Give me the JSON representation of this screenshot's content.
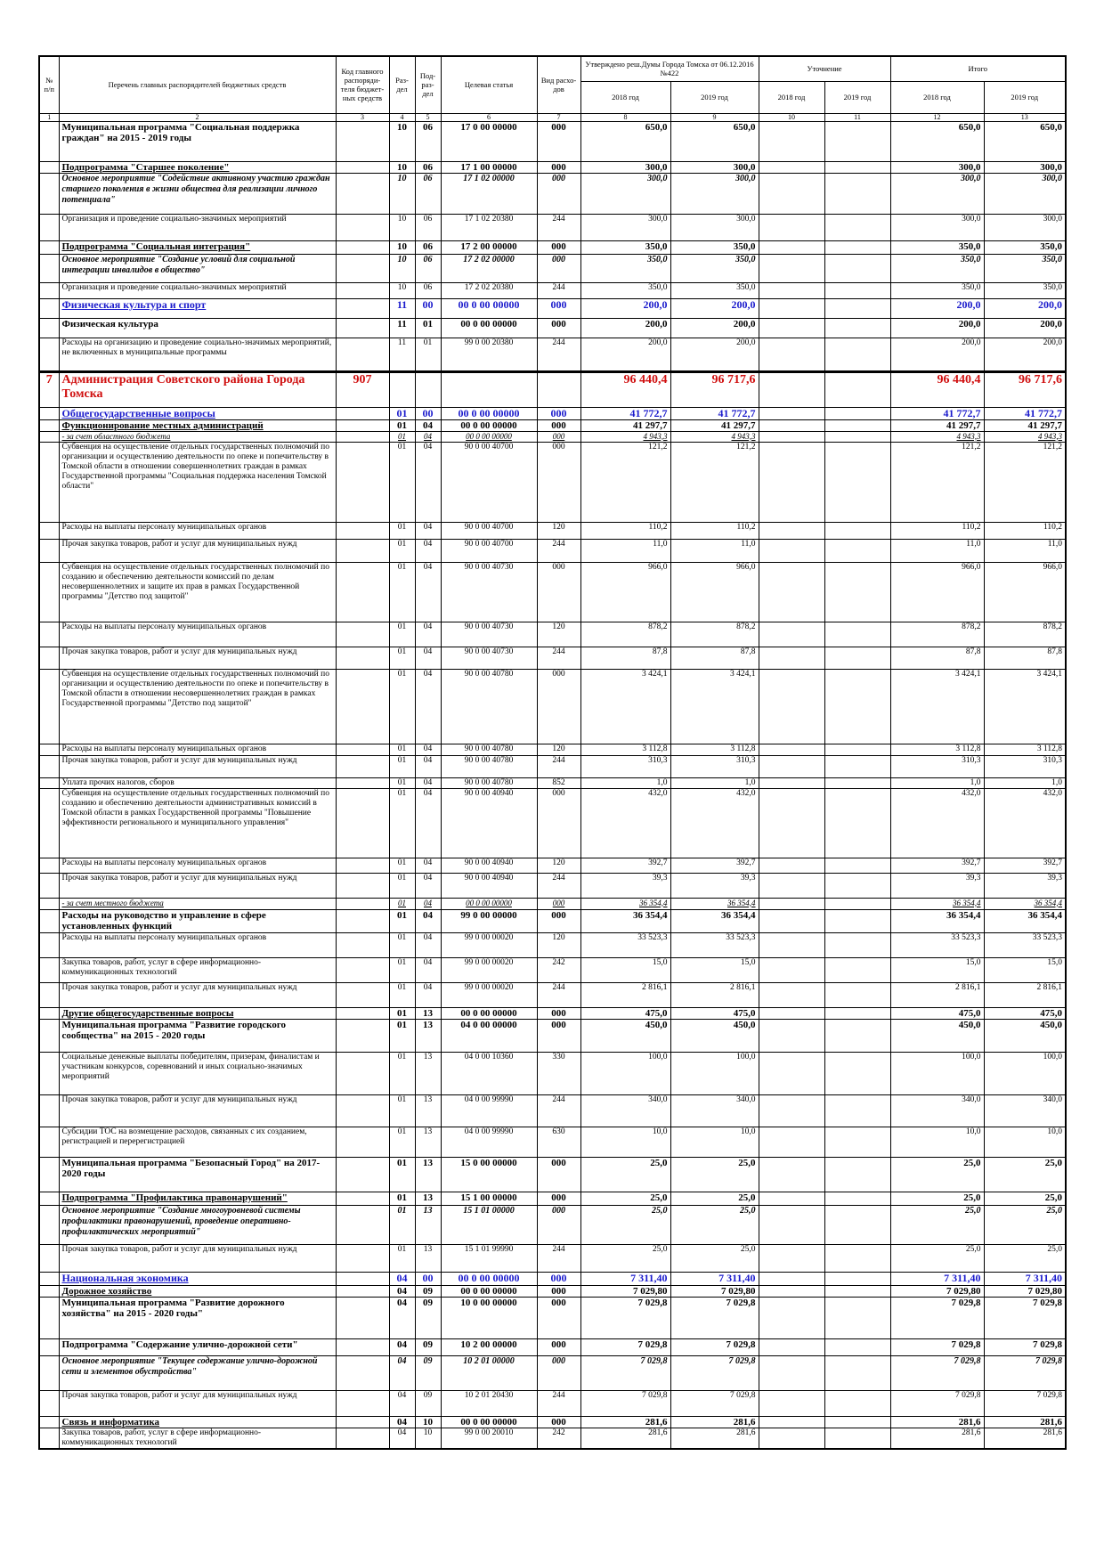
{
  "header": {
    "num": "№ п/п",
    "name": "Перечень главных распорядителей бюджетных средств",
    "code": "Код главного распоряди-теля бюджет-ных средств",
    "sec": "Раз-дел",
    "sub": "Под-раз-дел",
    "target": "Целевая статья",
    "kind": "Вид расхо-дов",
    "approved": "Утверждено реш.Думы Города Томска от 06.12.2016 №422",
    "clarified": "Уточнение",
    "total": "Итого",
    "years": [
      "2018 год",
      "2019 год",
      "2018 год",
      "2019 год",
      "2018 год",
      "2019 год"
    ],
    "colnums": [
      "1",
      "2",
      "3",
      "4",
      "5",
      "6",
      "7",
      "8",
      "9",
      "10",
      "11",
      "12",
      "13"
    ]
  },
  "table": {
    "rows": [
      {
        "name": "Муниципальная программа \"Социальная поддержка граждан\" на 2015 - 2019 годы",
        "sec": "10",
        "sub": "06",
        "target": "17 0 00 00000",
        "kind": "000",
        "a18": "650,0",
        "a19": "650,0",
        "t18": "650,0",
        "t19": "650,0"
      },
      {
        "name": "Подпрограмма \"Старшее поколение\"",
        "sec": "10",
        "sub": "06",
        "target": "17 1 00 00000",
        "kind": "000",
        "a18": "300,0",
        "a19": "300,0",
        "t18": "300,0",
        "t19": "300,0"
      },
      {
        "name": "Основное мероприятие \"Содействие активному участию граждан старшего поколения в жизни общества для реализации личного потенциала\"",
        "sec": "10",
        "sub": "06",
        "target": "17 1 02 00000",
        "kind": "000",
        "a18": "300,0",
        "a19": "300,0",
        "t18": "300,0",
        "t19": "300,0"
      },
      {
        "name": "Организация и проведение социально-значимых мероприятий",
        "sec": "10",
        "sub": "06",
        "target": "17 1 02 20380",
        "kind": "244",
        "a18": "300,0",
        "a19": "300,0",
        "t18": "300,0",
        "t19": "300,0"
      },
      {
        "name": "Подпрограмма \"Социальная интеграция\"",
        "sec": "10",
        "sub": "06",
        "target": "17 2 00 00000",
        "kind": "000",
        "a18": "350,0",
        "a19": "350,0",
        "t18": "350,0",
        "t19": "350,0"
      },
      {
        "name": "Основное мероприятие \"Создание условий для социальной интеграции инвалидов в общество\"",
        "sec": "10",
        "sub": "06",
        "target": "17 2 02 00000",
        "kind": "000",
        "a18": "350,0",
        "a19": "350,0",
        "t18": "350,0",
        "t19": "350,0"
      },
      {
        "name": "Организация и проведение социально-значимых мероприятий",
        "sec": "10",
        "sub": "06",
        "target": "17 2 02 20380",
        "kind": "244",
        "a18": "350,0",
        "a19": "350,0",
        "t18": "350,0",
        "t19": "350,0"
      },
      {
        "name": "Физическая культура и спорт",
        "sec": "11",
        "sub": "00",
        "target": "00 0 00 00000",
        "kind": "000",
        "a18": "200,0",
        "a19": "200,0",
        "t18": "200,0",
        "t19": "200,0"
      },
      {
        "name": "Физическая культура",
        "sec": "11",
        "sub": "01",
        "target": "00 0 00 00000",
        "kind": "000",
        "a18": "200,0",
        "a19": "200,0",
        "t18": "200,0",
        "t19": "200,0"
      },
      {
        "name": "Расходы на организацию и проведение социально-значимых мероприятий, не включенных в муниципальные программы",
        "sec": "11",
        "sub": "01",
        "target": "99 0 00 20380",
        "kind": "244",
        "a18": "200,0",
        "a19": "200,0",
        "t18": "200,0",
        "t19": "200,0"
      },
      {
        "num": "7",
        "name": "Администрация Советского района Города Томска",
        "code": "907",
        "a18": "96 440,4",
        "a19": "96 717,6",
        "t18": "96 440,4",
        "t19": "96 717,6"
      },
      {
        "name": "Общегосударственные вопросы",
        "sec": "01",
        "sub": "00",
        "target": "00 0 00 00000",
        "kind": "000",
        "a18": "41 772,7",
        "a19": "41 772,7",
        "t18": "41 772,7",
        "t19": "41 772,7"
      },
      {
        "name": "Функционирование местных администраций",
        "sec": "01",
        "sub": "04",
        "target": "00 0 00 00000",
        "kind": "000",
        "a18": "41 297,7",
        "a19": "41 297,7",
        "t18": "41 297,7",
        "t19": "41 297,7"
      },
      {
        "name": "- за счет областного бюджета",
        "sec": "01",
        "sub": "04",
        "target": "00 0 00 00000",
        "kind": "000",
        "a18": "4 943,3",
        "a19": "4 943,3",
        "t18": "4 943,3",
        "t19": "4 943,3"
      },
      {
        "name": "Субвенция на осуществление отдельных государственных полномочий по организации и осуществлению деятельности по опеке и попечительству в Томской области в отношении совершеннолетних граждан в рамках Государственной программы \"Социальная поддержка населения Томской области\"",
        "sec": "01",
        "sub": "04",
        "target": "90 0 00 40700",
        "kind": "000",
        "a18": "121,2",
        "a19": "121,2",
        "t18": "121,2",
        "t19": "121,2"
      },
      {
        "name": "Расходы на выплаты персоналу муниципальных органов",
        "sec": "01",
        "sub": "04",
        "target": "90 0 00 40700",
        "kind": "120",
        "a18": "110,2",
        "a19": "110,2",
        "t18": "110,2",
        "t19": "110,2"
      },
      {
        "name": "Прочая закупка товаров, работ и услуг для муниципальных нужд",
        "sec": "01",
        "sub": "04",
        "target": "90 0 00 40700",
        "kind": "244",
        "a18": "11,0",
        "a19": "11,0",
        "t18": "11,0",
        "t19": "11,0"
      },
      {
        "name": "Субвенция на осуществление отдельных государственных полномочий по созданию и обеспечению деятельности комиссий по делам несовершеннолетних и защите их прав в рамках Государственной программы \"Детство под защитой\"",
        "sec": "01",
        "sub": "04",
        "target": "90 0 00 40730",
        "kind": "000",
        "a18": "966,0",
        "a19": "966,0",
        "t18": "966,0",
        "t19": "966,0"
      },
      {
        "name": "Расходы на выплаты персоналу муниципальных органов",
        "sec": "01",
        "sub": "04",
        "target": "90 0 00 40730",
        "kind": "120",
        "a18": "878,2",
        "a19": "878,2",
        "t18": "878,2",
        "t19": "878,2"
      },
      {
        "name": "Прочая закупка товаров, работ и услуг для муниципальных нужд",
        "sec": "01",
        "sub": "04",
        "target": "90 0 00 40730",
        "kind": "244",
        "a18": "87,8",
        "a19": "87,8",
        "t18": "87,8",
        "t19": "87,8"
      },
      {
        "name": "Субвенция на осуществление отдельных государственных полномочий по организации и осуществлению деятельности по опеке и попечительству в Томской области в отношении несовершеннолетних граждан в рамках Государственной программы \"Детство под защитой\"",
        "sec": "01",
        "sub": "04",
        "target": "90 0 00 40780",
        "kind": "000",
        "a18": "3 424,1",
        "a19": "3 424,1",
        "t18": "3 424,1",
        "t19": "3 424,1"
      },
      {
        "name": "Расходы на выплаты персоналу муниципальных органов",
        "sec": "01",
        "sub": "04",
        "target": "90 0 00 40780",
        "kind": "120",
        "a18": "3 112,8",
        "a19": "3 112,8",
        "t18": "3 112,8",
        "t19": "3 112,8"
      },
      {
        "name": "Прочая закупка товаров, работ и услуг для муниципальных нужд",
        "sec": "01",
        "sub": "04",
        "target": "90 0 00 40780",
        "kind": "244",
        "a18": "310,3",
        "a19": "310,3",
        "t18": "310,3",
        "t19": "310,3"
      },
      {
        "name": "Уплата прочих налогов, сборов",
        "sec": "01",
        "sub": "04",
        "target": "90 0 00 40780",
        "kind": "852",
        "a18": "1,0",
        "a19": "1,0",
        "t18": "1,0",
        "t19": "1,0"
      },
      {
        "name": "Субвенция на осуществление отдельных государственных полномочий по созданию и обеспечению деятельности административных комиссий в Томской области в рамках Государственной программы \"Повышение эффективности регионального и муниципального управления\"",
        "sec": "01",
        "sub": "04",
        "target": "90 0 00 40940",
        "kind": "000",
        "a18": "432,0",
        "a19": "432,0",
        "t18": "432,0",
        "t19": "432,0"
      },
      {
        "name": "Расходы на выплаты персоналу муниципальных органов",
        "sec": "01",
        "sub": "04",
        "target": "90 0 00 40940",
        "kind": "120",
        "a18": "392,7",
        "a19": "392,7",
        "t18": "392,7",
        "t19": "392,7"
      },
      {
        "name": "Прочая закупка товаров, работ и услуг для муниципальных нужд",
        "sec": "01",
        "sub": "04",
        "target": "90 0 00 40940",
        "kind": "244",
        "a18": "39,3",
        "a19": "39,3",
        "t18": "39,3",
        "t19": "39,3"
      },
      {
        "name": "- за счет местного бюджета",
        "sec": "01",
        "sub": "04",
        "target": "00 0 00 00000",
        "kind": "000",
        "a18": "36 354,4",
        "a19": "36 354,4",
        "t18": "36 354,4",
        "t19": "36 354,4"
      },
      {
        "name": "Расходы на руководство и управление в сфере установленных функций",
        "sec": "01",
        "sub": "04",
        "target": "99 0 00 00000",
        "kind": "000",
        "a18": "36 354,4",
        "a19": "36 354,4",
        "t18": "36 354,4",
        "t19": "36 354,4"
      },
      {
        "name": "Расходы на выплаты персоналу муниципальных органов",
        "sec": "01",
        "sub": "04",
        "target": "99 0 00 00020",
        "kind": "120",
        "a18": "33 523,3",
        "a19": "33 523,3",
        "t18": "33 523,3",
        "t19": "33 523,3"
      },
      {
        "name": "Закупка товаров, работ, услуг в сфере информационно-коммуникационных технологий",
        "sec": "01",
        "sub": "04",
        "target": "99 0 00 00020",
        "kind": "242",
        "a18": "15,0",
        "a19": "15,0",
        "t18": "15,0",
        "t19": "15,0"
      },
      {
        "name": "Прочая закупка товаров, работ и услуг для муниципальных нужд",
        "sec": "01",
        "sub": "04",
        "target": "99 0 00 00020",
        "kind": "244",
        "a18": "2 816,1",
        "a19": "2 816,1",
        "t18": "2 816,1",
        "t19": "2 816,1"
      },
      {
        "name": "Другие общегосударственные вопросы",
        "sec": "01",
        "sub": "13",
        "target": "00 0 00 00000",
        "kind": "000",
        "a18": "475,0",
        "a19": "475,0",
        "t18": "475,0",
        "t19": "475,0"
      },
      {
        "name": "Муниципальная программа \"Развитие городского сообщества\" на 2015 - 2020 годы",
        "sec": "01",
        "sub": "13",
        "target": "04 0 00 00000",
        "kind": "000",
        "a18": "450,0",
        "a19": "450,0",
        "t18": "450,0",
        "t19": "450,0"
      },
      {
        "name": "Социальные денежные выплаты победителям, призерам, финалистам и участникам конкурсов, соревнований и иных социально-значимых мероприятий",
        "sec": "01",
        "sub": "13",
        "target": "04 0 00 10360",
        "kind": "330",
        "a18": "100,0",
        "a19": "100,0",
        "t18": "100,0",
        "t19": "100,0"
      },
      {
        "name": "Прочая закупка товаров, работ и услуг для муниципальных нужд",
        "sec": "01",
        "sub": "13",
        "target": "04 0 00 99990",
        "kind": "244",
        "a18": "340,0",
        "a19": "340,0",
        "t18": "340,0",
        "t19": "340,0"
      },
      {
        "name": "Субсидии ТОС на возмещение расходов, связанных с их созданием, регистрацией и перерегистрацией",
        "sec": "01",
        "sub": "13",
        "target": "04 0 00 99990",
        "kind": "630",
        "a18": "10,0",
        "a19": "10,0",
        "t18": "10,0",
        "t19": "10,0"
      },
      {
        "name": "Муниципальная программа \"Безопасный Город\" на 2017-2020 годы",
        "sec": "01",
        "sub": "13",
        "target": "15 0 00 00000",
        "kind": "000",
        "a18": "25,0",
        "a19": "25,0",
        "t18": "25,0",
        "t19": "25,0"
      },
      {
        "name": "Подпрограмма \"Профилактика правонарушений\"",
        "sec": "01",
        "sub": "13",
        "target": "15 1 00 00000",
        "kind": "000",
        "a18": "25,0",
        "a19": "25,0",
        "t18": "25,0",
        "t19": "25,0"
      },
      {
        "name": "Основное мероприятие \"Создание многоуровневой системы профилактики правонарушений, проведение оперативно-профилактических мероприятий\"",
        "sec": "01",
        "sub": "13",
        "target": "15 1 01 00000",
        "kind": "000",
        "a18": "25,0",
        "a19": "25,0",
        "t18": "25,0",
        "t19": "25,0"
      },
      {
        "name": "Прочая закупка товаров, работ и услуг для муниципальных нужд",
        "sec": "01",
        "sub": "13",
        "target": "15 1 01 99990",
        "kind": "244",
        "a18": "25,0",
        "a19": "25,0",
        "t18": "25,0",
        "t19": "25,0"
      },
      {
        "name": "Национальная экономика",
        "sec": "04",
        "sub": "00",
        "target": "00 0 00 00000",
        "kind": "000",
        "a18": "7 311,40",
        "a19": "7 311,40",
        "t18": "7 311,40",
        "t19": "7 311,40"
      },
      {
        "name": "Дорожное хозяйство",
        "sec": "04",
        "sub": "09",
        "target": "00 0 00 00000",
        "kind": "000",
        "a18": "7 029,80",
        "a19": "7 029,80",
        "t18": "7 029,80",
        "t19": "7 029,80"
      },
      {
        "name": "Муниципальная программа \"Развитие дорожного хозяйства\" на 2015 - 2020 годы\"",
        "sec": "04",
        "sub": "09",
        "target": "10 0 00 00000",
        "kind": "000",
        "a18": "7 029,8",
        "a19": "7 029,8",
        "t18": "7 029,8",
        "t19": "7 029,8"
      },
      {
        "name": "Подпрограмма \"Содержание улично-дорожной сети\"",
        "sec": "04",
        "sub": "09",
        "target": "10 2 00 00000",
        "kind": "000",
        "a18": "7 029,8",
        "a19": "7 029,8",
        "t18": "7 029,8",
        "t19": "7 029,8"
      },
      {
        "name": "Основное мероприятие \"Текущее содержание улично-дорожной сети и элементов обустройства\"",
        "sec": "04",
        "sub": "09",
        "target": "10 2 01 00000",
        "kind": "000",
        "a18": "7 029,8",
        "a19": "7 029,8",
        "t18": "7 029,8",
        "t19": "7 029,8"
      },
      {
        "name": "Прочая закупка товаров, работ и услуг для муниципальных нужд",
        "sec": "04",
        "sub": "09",
        "target": "10 2 01 20430",
        "kind": "244",
        "a18": "7 029,8",
        "a19": "7 029,8",
        "t18": "7 029,8",
        "t19": "7 029,8"
      },
      {
        "name": "Связь и информатика",
        "sec": "04",
        "sub": "10",
        "target": "00 0 00 00000",
        "kind": "000",
        "a18": "281,6",
        "a19": "281,6",
        "t18": "281,6",
        "t19": "281,6"
      },
      {
        "name": "Закупка товаров, работ, услуг в сфере информационно-коммуникационных технологий",
        "sec": "04",
        "sub": "10",
        "target": "99 0 00 20010",
        "kind": "242",
        "a18": "281,6",
        "a19": "281,6",
        "t18": "281,6",
        "t19": "281,6"
      }
    ]
  }
}
